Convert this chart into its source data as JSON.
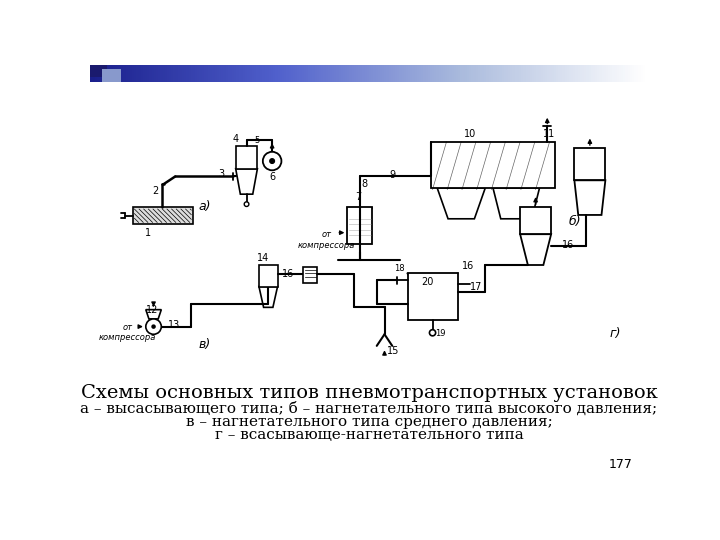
{
  "title": "Схемы основных типов пневмотранспортных установок",
  "line1": "а – высасывающего типа; б – нагнетательного типа высокого давления;",
  "line2": "в – нагнетательного типа среднего давления;",
  "line3": "г – всасывающе-нагнетательного типа",
  "page_number": "177",
  "title_fontsize": 14,
  "caption_fontsize": 11,
  "page_fontsize": 9,
  "header_color1": "#1a1f8c",
  "header_color2": "#ffffff",
  "dark_sq_color": "#1a1a6e"
}
